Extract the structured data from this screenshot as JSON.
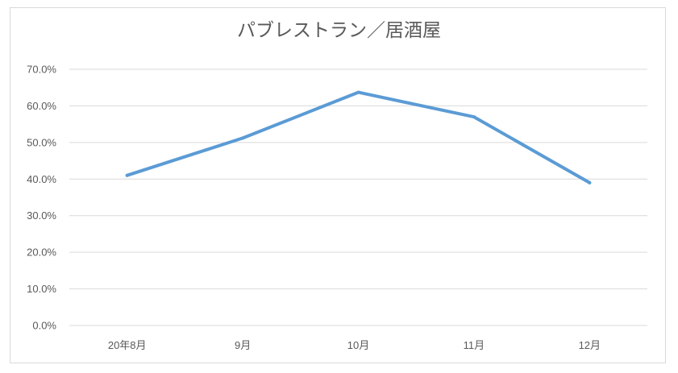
{
  "chart_data": {
    "type": "line",
    "title": "パブレストラン／居酒屋",
    "categories": [
      "20年8月",
      "9月",
      "10月",
      "11月",
      "12月"
    ],
    "series": [
      {
        "values": [
          41.0,
          51.2,
          63.7,
          57.0,
          39.0
        ],
        "color": "#5b9bd5"
      }
    ],
    "y_ticks": [
      "0.0%",
      "10.0%",
      "20.0%",
      "30.0%",
      "40.0%",
      "50.0%",
      "60.0%",
      "70.0%"
    ],
    "ylim": [
      0,
      70
    ],
    "grid": true,
    "legend": "none"
  }
}
